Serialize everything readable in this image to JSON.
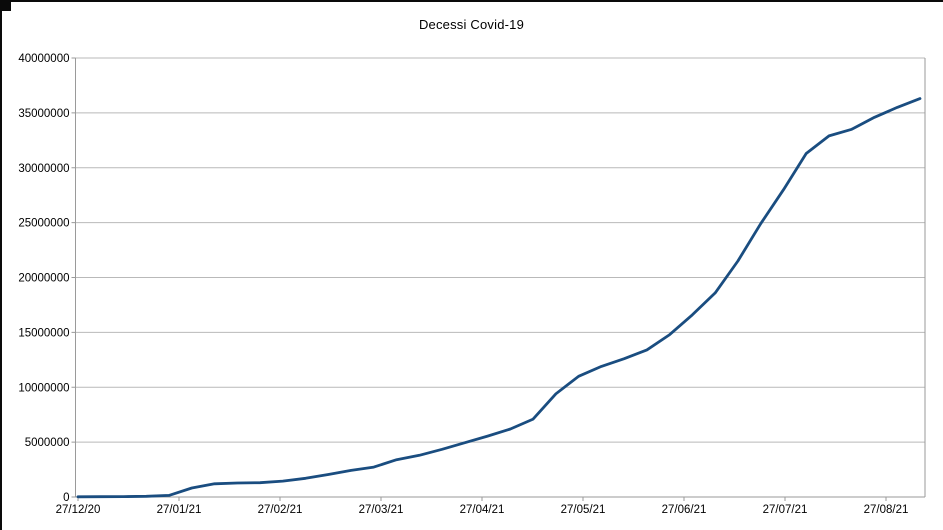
{
  "page": {
    "background": "#ffffff",
    "frame_border_color": "#0a0a0a"
  },
  "chart_data": {
    "type": "line",
    "title": "Decessi Covid-19",
    "legend": "none",
    "grid": "horizontal",
    "ylim": [
      0,
      40000000
    ],
    "y_ticks": [
      0,
      5000000,
      10000000,
      15000000,
      20000000,
      25000000,
      30000000,
      35000000,
      40000000
    ],
    "x_tick_labels": [
      "27/12/20",
      "27/01/21",
      "27/02/21",
      "27/03/21",
      "27/04/21",
      "27/05/21",
      "27/06/21",
      "27/07/21",
      "27/08/21"
    ],
    "x": [
      "27/12/20",
      "03/01/21",
      "10/01/21",
      "17/01/21",
      "24/01/21",
      "31/01/21",
      "07/02/21",
      "14/02/21",
      "21/02/21",
      "28/02/21",
      "07/03/21",
      "14/03/21",
      "21/03/21",
      "28/03/21",
      "04/04/21",
      "11/04/21",
      "18/04/21",
      "25/04/21",
      "02/05/21",
      "09/05/21",
      "16/05/21",
      "23/05/21",
      "30/05/21",
      "06/06/21",
      "13/06/21",
      "20/06/21",
      "27/06/21",
      "04/07/21",
      "11/07/21",
      "18/07/21",
      "25/07/21",
      "01/08/21",
      "08/08/21",
      "15/08/21",
      "22/08/21",
      "29/08/21",
      "05/09/21",
      "12/09/21"
    ],
    "series": [
      {
        "name": "Decessi Covid-19",
        "color": "#1a4d80",
        "values": [
          20000,
          25000,
          40000,
          60000,
          150000,
          820000,
          1200000,
          1280000,
          1300000,
          1450000,
          1700000,
          2050000,
          2420000,
          2720000,
          3400000,
          3800000,
          4350000,
          4950000,
          5550000,
          6200000,
          7100000,
          9400000,
          11000000,
          11900000,
          12600000,
          13400000,
          14800000,
          16600000,
          18600000,
          21500000,
          24900000,
          28000000,
          31300000,
          32900000,
          33500000,
          34600000,
          35500000,
          36300000
        ]
      }
    ],
    "axis_color": "#9a9a9a",
    "grid_color": "#b9b9b9",
    "text_color": "#000000"
  }
}
